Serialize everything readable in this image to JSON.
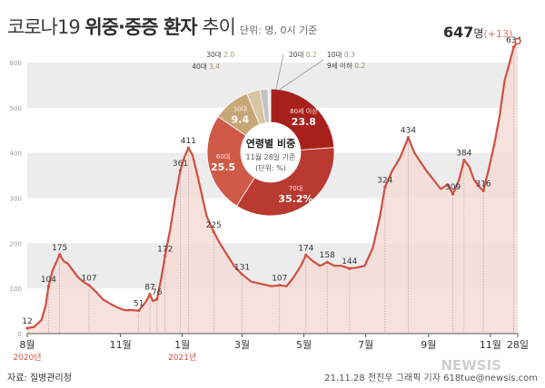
{
  "title": {
    "part1": "코로나19",
    "part2": "위중·중증 환자",
    "part3": "추이",
    "unit": "단위: 명, 0시 기준"
  },
  "source": "자료: 질병관리청",
  "credit": "21.11.28 전진우 그래픽 기자 618tue@newsis.com",
  "watermark": "NEWSIS",
  "colors": {
    "line": "#cf4f41",
    "area": "#f6dcd6",
    "band": "#ececec",
    "text_dark": "#2d2d2d",
    "accent": "#e0706a"
  },
  "chart_data": [
    {
      "type": "area",
      "ylim": [
        0,
        650
      ],
      "yticks": [
        "0",
        "100",
        "200",
        "300",
        "400",
        "500",
        "600"
      ],
      "x_start": "2020-08-01",
      "x_end": "2021-11-28",
      "month_ticks": [
        {
          "date": "2020-08-01",
          "label": "8월",
          "year": "2020년"
        },
        {
          "date": "2020-11-01",
          "label": "11월",
          "year": ""
        },
        {
          "date": "2021-01-01",
          "label": "1월",
          "year": "2021년"
        },
        {
          "date": "2021-03-01",
          "label": "3월",
          "year": ""
        },
        {
          "date": "2021-05-01",
          "label": "5월",
          "year": ""
        },
        {
          "date": "2021-07-01",
          "label": "7월",
          "year": ""
        },
        {
          "date": "2021-09-01",
          "label": "9월",
          "year": ""
        },
        {
          "date": "2021-11-01",
          "label": "11월",
          "year": ""
        },
        {
          "date": "2021-11-28",
          "label": "28일",
          "year": ""
        }
      ],
      "series": [
        {
          "points": [
            [
              "2020-08-01",
              12
            ],
            [
              "2020-08-08",
              15
            ],
            [
              "2020-08-15",
              30
            ],
            [
              "2020-08-19",
              60
            ],
            [
              "2020-08-22",
              104
            ],
            [
              "2020-08-26",
              140
            ],
            [
              "2020-08-30",
              160
            ],
            [
              "2020-09-02",
              175
            ],
            [
              "2020-09-06",
              160
            ],
            [
              "2020-09-10",
              155
            ],
            [
              "2020-09-15",
              140
            ],
            [
              "2020-09-20",
              125
            ],
            [
              "2020-09-25",
              115
            ],
            [
              "2020-10-01",
              107
            ],
            [
              "2020-10-08",
              92
            ],
            [
              "2020-10-15",
              75
            ],
            [
              "2020-10-22",
              66
            ],
            [
              "2020-10-29",
              58
            ],
            [
              "2020-11-05",
              52
            ],
            [
              "2020-11-12",
              52
            ],
            [
              "2020-11-19",
              51
            ],
            [
              "2020-11-26",
              70
            ],
            [
              "2020-11-30",
              87
            ],
            [
              "2020-12-03",
              72
            ],
            [
              "2020-12-07",
              76
            ],
            [
              "2020-12-11",
              120
            ],
            [
              "2020-12-15",
              172
            ],
            [
              "2020-12-20",
              230
            ],
            [
              "2020-12-25",
              300
            ],
            [
              "2020-12-30",
              361
            ],
            [
              "2021-01-03",
              390
            ],
            [
              "2021-01-07",
              411
            ],
            [
              "2021-01-11",
              395
            ],
            [
              "2021-01-15",
              360
            ],
            [
              "2021-01-20",
              310
            ],
            [
              "2021-01-25",
              260
            ],
            [
              "2021-02-01",
              225
            ],
            [
              "2021-02-07",
              200
            ],
            [
              "2021-02-14",
              175
            ],
            [
              "2021-02-21",
              150
            ],
            [
              "2021-03-01",
              131
            ],
            [
              "2021-03-10",
              115
            ],
            [
              "2021-03-20",
              110
            ],
            [
              "2021-03-30",
              105
            ],
            [
              "2021-04-07",
              107
            ],
            [
              "2021-04-14",
              105
            ],
            [
              "2021-04-21",
              125
            ],
            [
              "2021-04-28",
              150
            ],
            [
              "2021-05-03",
              174
            ],
            [
              "2021-05-10",
              160
            ],
            [
              "2021-05-17",
              150
            ],
            [
              "2021-05-24",
              158
            ],
            [
              "2021-05-31",
              150
            ],
            [
              "2021-06-07",
              150
            ],
            [
              "2021-06-15",
              144
            ],
            [
              "2021-06-22",
              146
            ],
            [
              "2021-06-30",
              150
            ],
            [
              "2021-07-08",
              190
            ],
            [
              "2021-07-15",
              260
            ],
            [
              "2021-07-20",
              324
            ],
            [
              "2021-07-27",
              360
            ],
            [
              "2021-08-04",
              390
            ],
            [
              "2021-08-12",
              434
            ],
            [
              "2021-08-18",
              400
            ],
            [
              "2021-08-24",
              380
            ],
            [
              "2021-08-30",
              360
            ],
            [
              "2021-09-06",
              340
            ],
            [
              "2021-09-13",
              320
            ],
            [
              "2021-09-20",
              330
            ],
            [
              "2021-09-25",
              309
            ],
            [
              "2021-10-01",
              340
            ],
            [
              "2021-10-06",
              384
            ],
            [
              "2021-10-11",
              370
            ],
            [
              "2021-10-16",
              340
            ],
            [
              "2021-10-21",
              325
            ],
            [
              "2021-10-25",
              316
            ],
            [
              "2021-10-30",
              360
            ],
            [
              "2021-11-05",
              420
            ],
            [
              "2021-11-10",
              480
            ],
            [
              "2021-11-15",
              560
            ],
            [
              "2021-11-20",
              600
            ],
            [
              "2021-11-24",
              634
            ],
            [
              "2021-11-28",
              647
            ]
          ]
        }
      ],
      "annotations": [
        {
          "date": "2020-08-01",
          "value": 12,
          "label": "12"
        },
        {
          "date": "2020-08-22",
          "value": 104,
          "label": "104"
        },
        {
          "date": "2020-09-02",
          "value": 175,
          "label": "175"
        },
        {
          "date": "2020-10-01",
          "value": 107,
          "label": "107"
        },
        {
          "date": "2020-11-19",
          "value": 51,
          "label": "51"
        },
        {
          "date": "2020-11-30",
          "value": 87,
          "label": "87"
        },
        {
          "date": "2020-12-07",
          "value": 76,
          "label": "76"
        },
        {
          "date": "2020-12-15",
          "value": 172,
          "label": "172"
        },
        {
          "date": "2020-12-30",
          "value": 361,
          "label": "361"
        },
        {
          "date": "2021-01-07",
          "value": 411,
          "label": "411"
        },
        {
          "date": "2021-02-01",
          "value": 225,
          "label": "225"
        },
        {
          "date": "2021-03-01",
          "value": 131,
          "label": "131"
        },
        {
          "date": "2021-04-07",
          "value": 107,
          "label": "107"
        },
        {
          "date": "2021-05-03",
          "value": 174,
          "label": "174"
        },
        {
          "date": "2021-05-24",
          "value": 158,
          "label": "158"
        },
        {
          "date": "2021-06-15",
          "value": 144,
          "label": "144"
        },
        {
          "date": "2021-07-20",
          "value": 324,
          "label": "324"
        },
        {
          "date": "2021-08-12",
          "value": 434,
          "label": "434"
        },
        {
          "date": "2021-09-25",
          "value": 309,
          "label": "309"
        },
        {
          "date": "2021-10-06",
          "value": 384,
          "label": "384"
        },
        {
          "date": "2021-10-25",
          "value": 316,
          "label": "316"
        },
        {
          "date": "2021-11-24",
          "value": 634,
          "label": "634"
        }
      ],
      "final": {
        "value": "647",
        "unit": "명",
        "delta": "(+13)"
      }
    },
    {
      "type": "pie",
      "title": "연령별 비중",
      "subtitle": "11월 28일 기준",
      "unit": "(단위: %)",
      "slices": [
        {
          "label": "80세 이상",
          "value": 23.8,
          "display": "23.8",
          "color": "#a8201c"
        },
        {
          "label": "70대",
          "value": 35.2,
          "display": "35.2%",
          "color": "#b93a30"
        },
        {
          "label": "60대",
          "value": 25.5,
          "display": "25.5",
          "color": "#cf5a48"
        },
        {
          "label": "50대",
          "value": 9.4,
          "display": "9.4",
          "color": "#c8a776"
        },
        {
          "label": "40대",
          "value": 3.4,
          "display": "3.4",
          "color": "#d6c6a4"
        },
        {
          "label": "30대",
          "value": 2.0,
          "display": "2.0",
          "color": "#c2c2c2"
        },
        {
          "label": "20대",
          "value": 0.2,
          "display": "0.2",
          "color": "#a0a0a0"
        },
        {
          "label": "10대",
          "value": 0.3,
          "display": "0.3",
          "color": "#8a8a8a"
        },
        {
          "label": "9세 이하",
          "value": 0.2,
          "display": "0.2",
          "color": "#6e6e6e"
        }
      ]
    }
  ]
}
